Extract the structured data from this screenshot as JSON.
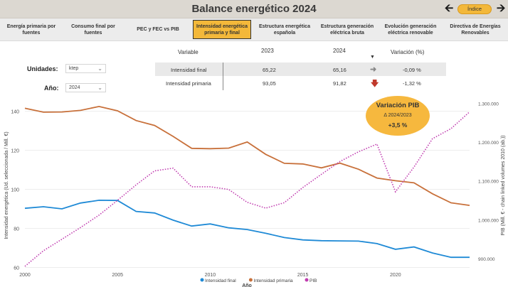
{
  "header": {
    "title": "Balance energético 2024",
    "back_icon": "arrow-left-icon",
    "forward_icon": "arrow-right-icon",
    "index_label": "Índice",
    "index_color": "#f3b83a"
  },
  "tabs": [
    {
      "label": "Energía primaria por fuentes",
      "active": false
    },
    {
      "label": "Consumo final por fuentes",
      "active": false
    },
    {
      "label": "PEC y FEC vs PIB",
      "active": false
    },
    {
      "label": "Intensidad energética primaria y final",
      "active": true
    },
    {
      "label": "Estructura energética española",
      "active": false
    },
    {
      "label": "Estructura generación eléctrica bruta",
      "active": false
    },
    {
      "label": "Evolución generación eléctrica renovable",
      "active": false
    },
    {
      "label": "Directiva de Energías Renovables",
      "active": false
    }
  ],
  "filters": {
    "units_label": "Unidades:",
    "units_value": "ktep",
    "year_label": "Año:",
    "year_value": "2024"
  },
  "table": {
    "headers": {
      "variable": "Variable",
      "y1": "2023",
      "y2": "2024",
      "change": "Variación (%)"
    },
    "sort_icon": "sort-desc-icon",
    "rows": [
      {
        "variable": "Intensidad final",
        "y1": "65,22",
        "y2": "65,16",
        "trend_icon": "arrow-right-icon",
        "change": "-0,09 %"
      },
      {
        "variable": "Intensidad primaria",
        "y1": "93,05",
        "y2": "91,82",
        "trend_icon": "arrow-down-icon",
        "change": "-1,32 %"
      }
    ]
  },
  "bubble": {
    "title": "Variación PIB",
    "subtitle": "Δ 2024/2023",
    "value": "+3,5 %"
  },
  "chart_data": {
    "type": "line",
    "title": "",
    "xlabel": "Año",
    "ylabel": "Intensidad energética (Ud. seleccionada / Mill. €)",
    "y2label": "PIB (Mill. € - chain linked volumes 2010 (ab.))",
    "x": [
      2000,
      2001,
      2002,
      2003,
      2004,
      2005,
      2006,
      2007,
      2008,
      2009,
      2010,
      2011,
      2012,
      2013,
      2014,
      2015,
      2016,
      2017,
      2018,
      2019,
      2020,
      2021,
      2022,
      2023,
      2024
    ],
    "xticks": [
      2000,
      2005,
      2010,
      2015,
      2020
    ],
    "yticks": [
      60,
      80,
      100,
      120,
      140
    ],
    "ylim": [
      58,
      146
    ],
    "y2ticks": [
      "900.000",
      "1.000.000",
      "1.100.000",
      "1.200.000",
      "1.300.000"
    ],
    "y2ticks_values": [
      900000,
      1000000,
      1100000,
      1200000,
      1300000
    ],
    "y2lim": [
      867000,
      1310000
    ],
    "grid": "horizontal",
    "legend_position": "bottom",
    "series": [
      {
        "name": "Intensidad final",
        "axis": "left",
        "color": "#1f8ad6",
        "values": [
          90.3,
          91.1,
          90.0,
          93.0,
          94.4,
          94.3,
          88.7,
          87.9,
          84.2,
          81.2,
          82.3,
          80.3,
          79.4,
          77.5,
          75.3,
          74.1,
          73.7,
          73.6,
          73.5,
          72.2,
          69.3,
          70.5,
          67.4,
          65.2,
          65.2
        ]
      },
      {
        "name": "Intensidad primaria",
        "axis": "left",
        "color": "#c8703a",
        "values": [
          141.5,
          139.5,
          139.6,
          140.4,
          142.4,
          140.2,
          135.2,
          132.7,
          127.1,
          121.0,
          120.8,
          121.1,
          124.2,
          117.9,
          113.3,
          113.0,
          111.0,
          113.4,
          110.3,
          105.8,
          104.4,
          103.3,
          97.7,
          93.1,
          91.8
        ]
      },
      {
        "name": "PIB",
        "axis": "right",
        "color": "#c13db0",
        "dotted": true,
        "values": [
          880000,
          920000,
          950000,
          980000,
          1012000,
          1050000,
          1090000,
          1126000,
          1133000,
          1085000,
          1085000,
          1078000,
          1045000,
          1030000,
          1044000,
          1083000,
          1117000,
          1150000,
          1175000,
          1195000,
          1072000,
          1136000,
          1209000,
          1235000,
          1278000
        ]
      }
    ]
  }
}
